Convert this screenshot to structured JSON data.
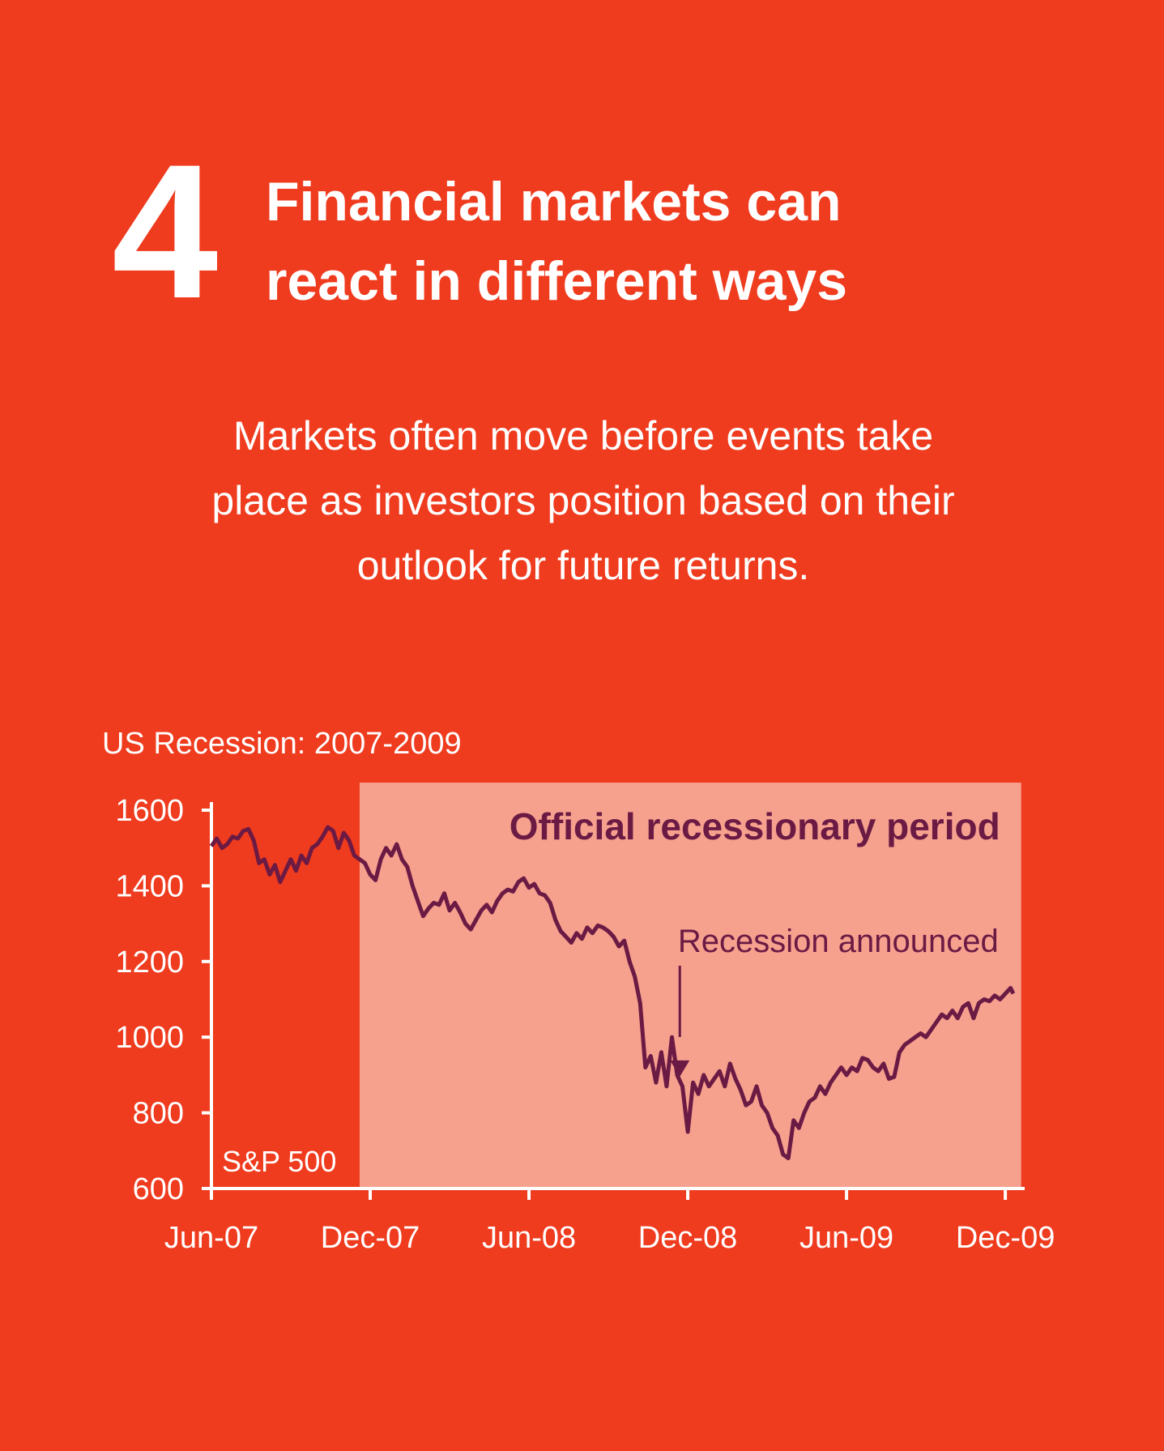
{
  "header": {
    "number": "4",
    "title_line1": "Financial markets can",
    "title_line2": "react in different ways"
  },
  "subtitle": {
    "line1": "Markets often move before events take",
    "line2": "place as investors position based on their",
    "line3": "outlook for future returns."
  },
  "colors": {
    "background": "#ef3b1e",
    "shade": "#f6a08e",
    "line": "#6b1a44",
    "axis": "#ffffff"
  },
  "chart_data": {
    "type": "line",
    "title": "US Recession: 2007-2009",
    "series_label": "S&P 500",
    "xlabel": "",
    "ylabel": "",
    "ylim": [
      600,
      1600
    ],
    "xlim": [
      0,
      30.3
    ],
    "y_ticks": [
      600,
      800,
      1000,
      1200,
      1400,
      1600
    ],
    "x_ticks": [
      {
        "label": "Jun-07",
        "month": 0
      },
      {
        "label": "Dec-07",
        "month": 6
      },
      {
        "label": "Jun-08",
        "month": 12
      },
      {
        "label": "Dec-08",
        "month": 18
      },
      {
        "label": "Jun-09",
        "month": 24
      },
      {
        "label": "Dec-09",
        "month": 30
      }
    ],
    "shaded_period": {
      "label": "Official recessionary period",
      "start_month": 5.6,
      "end_month": 30.6
    },
    "annotation": {
      "label": "Recession announced",
      "month": 17.7,
      "value": 960
    },
    "series": [
      {
        "name": "S&P 500",
        "points": [
          [
            0.0,
            1505
          ],
          [
            0.2,
            1525
          ],
          [
            0.4,
            1500
          ],
          [
            0.6,
            1510
          ],
          [
            0.8,
            1530
          ],
          [
            1.0,
            1525
          ],
          [
            1.2,
            1545
          ],
          [
            1.4,
            1550
          ],
          [
            1.6,
            1520
          ],
          [
            1.8,
            1460
          ],
          [
            2.0,
            1470
          ],
          [
            2.2,
            1430
          ],
          [
            2.4,
            1455
          ],
          [
            2.6,
            1410
          ],
          [
            2.8,
            1440
          ],
          [
            3.0,
            1470
          ],
          [
            3.2,
            1440
          ],
          [
            3.4,
            1480
          ],
          [
            3.6,
            1460
          ],
          [
            3.8,
            1500
          ],
          [
            4.0,
            1510
          ],
          [
            4.2,
            1530
          ],
          [
            4.4,
            1555
          ],
          [
            4.6,
            1545
          ],
          [
            4.8,
            1500
          ],
          [
            5.0,
            1540
          ],
          [
            5.2,
            1520
          ],
          [
            5.4,
            1480
          ],
          [
            5.6,
            1470
          ],
          [
            5.8,
            1460
          ],
          [
            6.0,
            1430
          ],
          [
            6.2,
            1415
          ],
          [
            6.4,
            1470
          ],
          [
            6.6,
            1500
          ],
          [
            6.8,
            1480
          ],
          [
            7.0,
            1510
          ],
          [
            7.2,
            1470
          ],
          [
            7.4,
            1450
          ],
          [
            7.6,
            1400
          ],
          [
            7.8,
            1360
          ],
          [
            8.0,
            1320
          ],
          [
            8.2,
            1340
          ],
          [
            8.4,
            1355
          ],
          [
            8.6,
            1350
          ],
          [
            8.8,
            1380
          ],
          [
            9.0,
            1335
          ],
          [
            9.2,
            1355
          ],
          [
            9.4,
            1330
          ],
          [
            9.6,
            1300
          ],
          [
            9.8,
            1285
          ],
          [
            10.0,
            1310
          ],
          [
            10.2,
            1335
          ],
          [
            10.4,
            1350
          ],
          [
            10.6,
            1330
          ],
          [
            10.8,
            1360
          ],
          [
            11.0,
            1380
          ],
          [
            11.2,
            1390
          ],
          [
            11.4,
            1385
          ],
          [
            11.6,
            1410
          ],
          [
            11.8,
            1420
          ],
          [
            12.0,
            1395
          ],
          [
            12.2,
            1405
          ],
          [
            12.4,
            1380
          ],
          [
            12.6,
            1375
          ],
          [
            12.8,
            1355
          ],
          [
            13.0,
            1310
          ],
          [
            13.2,
            1280
          ],
          [
            13.4,
            1265
          ],
          [
            13.6,
            1250
          ],
          [
            13.8,
            1275
          ],
          [
            14.0,
            1260
          ],
          [
            14.2,
            1290
          ],
          [
            14.4,
            1275
          ],
          [
            14.6,
            1295
          ],
          [
            14.8,
            1290
          ],
          [
            15.0,
            1280
          ],
          [
            15.2,
            1265
          ],
          [
            15.4,
            1240
          ],
          [
            15.6,
            1255
          ],
          [
            15.8,
            1200
          ],
          [
            16.0,
            1160
          ],
          [
            16.2,
            1090
          ],
          [
            16.4,
            920
          ],
          [
            16.6,
            950
          ],
          [
            16.8,
            880
          ],
          [
            17.0,
            960
          ],
          [
            17.2,
            870
          ],
          [
            17.4,
            1000
          ],
          [
            17.6,
            900
          ],
          [
            17.8,
            870
          ],
          [
            18.0,
            750
          ],
          [
            18.2,
            880
          ],
          [
            18.4,
            850
          ],
          [
            18.6,
            900
          ],
          [
            18.8,
            870
          ],
          [
            19.0,
            890
          ],
          [
            19.2,
            910
          ],
          [
            19.4,
            870
          ],
          [
            19.6,
            930
          ],
          [
            19.8,
            890
          ],
          [
            20.0,
            860
          ],
          [
            20.2,
            820
          ],
          [
            20.4,
            830
          ],
          [
            20.6,
            870
          ],
          [
            20.8,
            820
          ],
          [
            21.0,
            800
          ],
          [
            21.2,
            760
          ],
          [
            21.4,
            740
          ],
          [
            21.6,
            690
          ],
          [
            21.8,
            680
          ],
          [
            22.0,
            780
          ],
          [
            22.2,
            760
          ],
          [
            22.4,
            800
          ],
          [
            22.6,
            830
          ],
          [
            22.8,
            840
          ],
          [
            23.0,
            870
          ],
          [
            23.2,
            850
          ],
          [
            23.4,
            880
          ],
          [
            23.6,
            900
          ],
          [
            23.8,
            920
          ],
          [
            24.0,
            900
          ],
          [
            24.2,
            920
          ],
          [
            24.4,
            910
          ],
          [
            24.6,
            945
          ],
          [
            24.8,
            940
          ],
          [
            25.0,
            920
          ],
          [
            25.2,
            910
          ],
          [
            25.4,
            930
          ],
          [
            25.6,
            890
          ],
          [
            25.8,
            895
          ],
          [
            26.0,
            960
          ],
          [
            26.2,
            980
          ],
          [
            26.4,
            990
          ],
          [
            26.6,
            1000
          ],
          [
            26.8,
            1010
          ],
          [
            27.0,
            1000
          ],
          [
            27.2,
            1020
          ],
          [
            27.4,
            1040
          ],
          [
            27.6,
            1060
          ],
          [
            27.8,
            1050
          ],
          [
            28.0,
            1070
          ],
          [
            28.2,
            1050
          ],
          [
            28.4,
            1080
          ],
          [
            28.6,
            1090
          ],
          [
            28.8,
            1050
          ],
          [
            29.0,
            1090
          ],
          [
            29.2,
            1100
          ],
          [
            29.4,
            1095
          ],
          [
            29.6,
            1110
          ],
          [
            29.8,
            1100
          ],
          [
            30.0,
            1115
          ],
          [
            30.2,
            1130
          ],
          [
            30.3,
            1115
          ]
        ]
      }
    ]
  }
}
